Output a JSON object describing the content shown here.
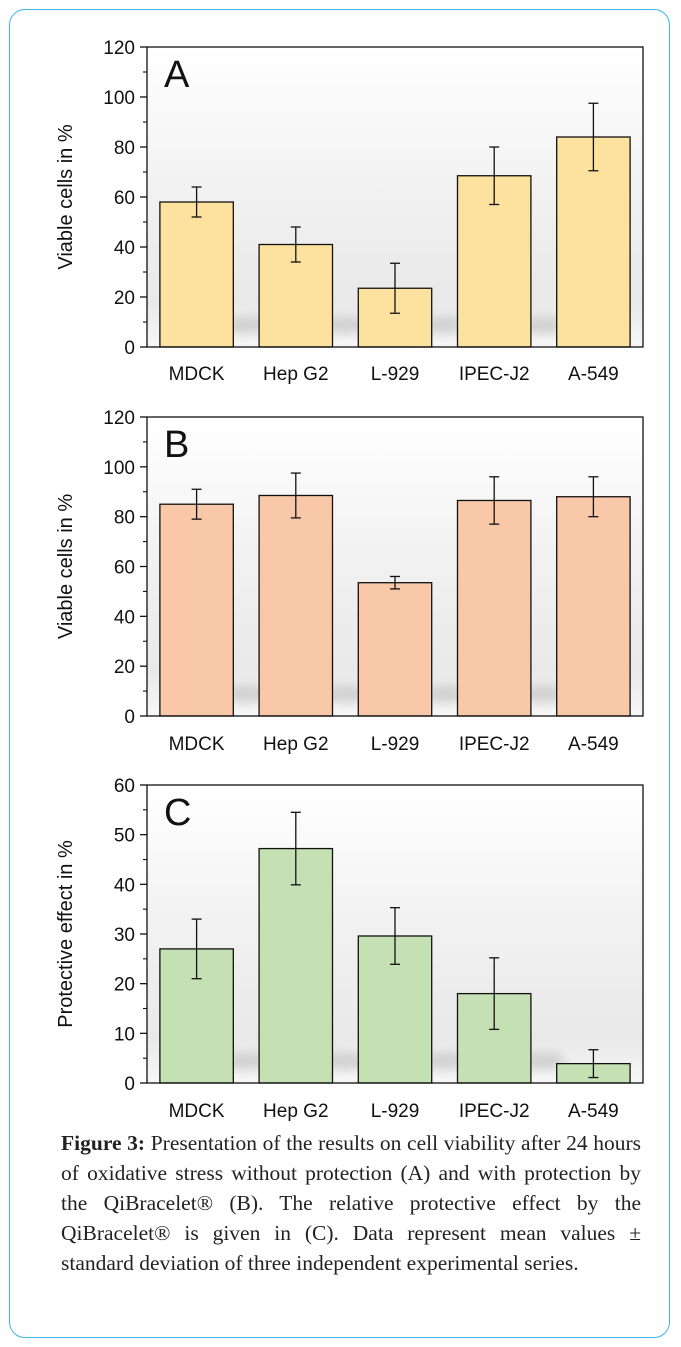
{
  "chart_data": [
    {
      "type": "bar",
      "panel_letter": "A",
      "categories": [
        "MDCK",
        "Hep G2",
        "L-929",
        "IPEC-J2",
        "A-549"
      ],
      "values": [
        58,
        41,
        23.5,
        68.5,
        84
      ],
      "errors": [
        6,
        7,
        10,
        11.5,
        13.5
      ],
      "ylabel": "Viable cells in %",
      "ylim": [
        0,
        120
      ],
      "yticks": [
        0,
        20,
        40,
        60,
        80,
        100,
        120
      ],
      "bar_color": "#fde29f",
      "grid": false
    },
    {
      "type": "bar",
      "panel_letter": "B",
      "categories": [
        "MDCK",
        "Hep G2",
        "L-929",
        "IPEC-J2",
        "A-549"
      ],
      "values": [
        85,
        88.5,
        53.5,
        86.5,
        88
      ],
      "errors": [
        6,
        9,
        2.5,
        9.5,
        8
      ],
      "ylabel": "Viable cells in %",
      "ylim": [
        0,
        120
      ],
      "yticks": [
        0,
        20,
        40,
        60,
        80,
        100,
        120
      ],
      "bar_color": "#f8c8a8",
      "grid": false
    },
    {
      "type": "bar",
      "panel_letter": "C",
      "categories": [
        "MDCK",
        "Hep G2",
        "L-929",
        "IPEC-J2",
        "A-549"
      ],
      "values": [
        27,
        47.2,
        29.6,
        18,
        3.9
      ],
      "errors": [
        6,
        7.3,
        5.7,
        7.2,
        2.8
      ],
      "ylabel": "Protective effect in %",
      "ylim": [
        0,
        60
      ],
      "yticks": [
        0,
        10,
        20,
        30,
        40,
        50,
        60
      ],
      "bar_color": "#c5e0b3",
      "grid": false
    }
  ],
  "caption": {
    "label": "Figure 3:",
    "text": " Presentation of the results on cell viability after 24 hours of oxidative stress without protection (A) and with protection by the QiBracelet® (B). The relative protective effect by the QiBracelet® is given in (C). Data represent mean values ± standard deviation of three independent experimental series."
  }
}
